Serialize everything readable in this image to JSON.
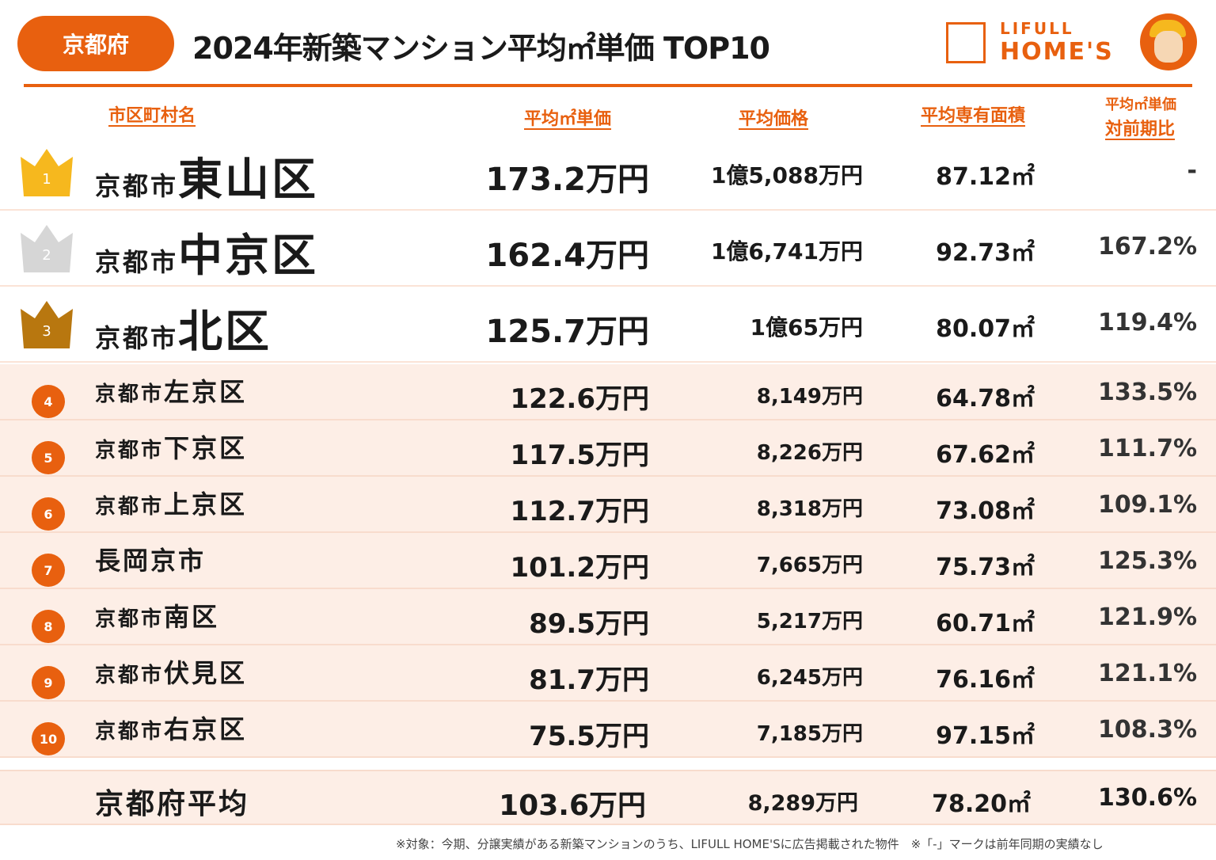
{
  "header": {
    "prefecture": "京都府",
    "title": "2024年新築マンション平均㎡単価 TOP10",
    "logo_line1": "LIFULL",
    "logo_line2": "HOME'S"
  },
  "columns": {
    "name": "市区町村名",
    "unit_price": "平均㎡単価",
    "price": "平均価格",
    "area": "平均専有面積",
    "ratio_line1": "平均㎡単価",
    "ratio_line2": "対前期比"
  },
  "rows": [
    {
      "rank": "1",
      "prefix": "京都市",
      "name": "東山区",
      "unit_price": "173.2万円",
      "price": "1億5,088万円",
      "area": "87.12㎡",
      "ratio": "-"
    },
    {
      "rank": "2",
      "prefix": "京都市",
      "name": "中京区",
      "unit_price": "162.4万円",
      "price": "1億6,741万円",
      "area": "92.73㎡",
      "ratio": "167.2%"
    },
    {
      "rank": "3",
      "prefix": "京都市",
      "name": "北区",
      "unit_price": "125.7万円",
      "price": "1億65万円",
      "area": "80.07㎡",
      "ratio": "119.4%"
    },
    {
      "rank": "4",
      "prefix": "京都市",
      "name": "左京区",
      "unit_price": "122.6万円",
      "price": "8,149万円",
      "area": "64.78㎡",
      "ratio": "133.5%"
    },
    {
      "rank": "5",
      "prefix": "京都市",
      "name": "下京区",
      "unit_price": "117.5万円",
      "price": "8,226万円",
      "area": "67.62㎡",
      "ratio": "111.7%"
    },
    {
      "rank": "6",
      "prefix": "京都市",
      "name": "上京区",
      "unit_price": "112.7万円",
      "price": "8,318万円",
      "area": "73.08㎡",
      "ratio": "109.1%"
    },
    {
      "rank": "7",
      "prefix": "",
      "name": "長岡京市",
      "unit_price": "101.2万円",
      "price": "7,665万円",
      "area": "75.73㎡",
      "ratio": "125.3%"
    },
    {
      "rank": "8",
      "prefix": "京都市",
      "name": "南区",
      "unit_price": "89.5万円",
      "price": "5,217万円",
      "area": "60.71㎡",
      "ratio": "121.9%"
    },
    {
      "rank": "9",
      "prefix": "京都市",
      "name": "伏見区",
      "unit_price": "81.7万円",
      "price": "6,245万円",
      "area": "76.16㎡",
      "ratio": "121.1%"
    },
    {
      "rank": "10",
      "prefix": "京都市",
      "name": "右京区",
      "unit_price": "75.5万円",
      "price": "7,185万円",
      "area": "97.15㎡",
      "ratio": "108.3%"
    }
  ],
  "average": {
    "name": "京都府平均",
    "unit_price": "103.6万円",
    "price": "8,289万円",
    "area": "78.20㎡",
    "ratio": "130.6%"
  },
  "footnote": "※対象：今期、分譲実績がある新築マンションのうち、LIFULL HOME'Sに広告掲載された物件　※「-」マークは前年同期の実績なし",
  "colors": {
    "accent": "#e8600f",
    "gold": "#f6b81e",
    "silver": "#d6d6d6",
    "bronze": "#b8770f",
    "row_bg": "#fdeee6"
  }
}
